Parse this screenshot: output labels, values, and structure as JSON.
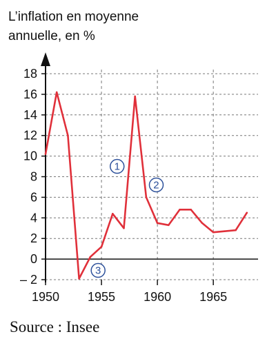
{
  "chart_data": {
    "type": "line",
    "title_lines": [
      "L’inflation en moyenne",
      "annuelle, en %"
    ],
    "source": "Source : Insee",
    "x": [
      1950,
      1951,
      1952,
      1953,
      1954,
      1955,
      1956,
      1957,
      1958,
      1959,
      1960,
      1961,
      1962,
      1963,
      1964,
      1965,
      1966,
      1967,
      1968
    ],
    "series": [
      {
        "values": [
          10.2,
          16.2,
          12.0,
          -1.9,
          0.2,
          1.2,
          4.4,
          3.0,
          15.8,
          6.0,
          3.5,
          3.3,
          4.8,
          4.8,
          3.5,
          2.6,
          2.7,
          2.8,
          4.5
        ]
      }
    ],
    "xlim": [
      1950,
      1969
    ],
    "ylim": [
      -2,
      18
    ],
    "xticks": [
      1950,
      1955,
      1960,
      1965
    ],
    "yticks": [
      -2,
      0,
      2,
      4,
      6,
      8,
      10,
      12,
      14,
      16,
      18
    ],
    "ytick_labels": [
      "– 2",
      "0",
      "2",
      "4",
      "6",
      "8",
      "10",
      "12",
      "14",
      "16",
      "18"
    ],
    "grid": true,
    "line_color": "#e0303a",
    "marker_color": "#2b4f9a",
    "annotations": [
      {
        "label": "1",
        "x": 1956.4,
        "y": 9.0
      },
      {
        "label": "2",
        "x": 1959.9,
        "y": 7.2
      },
      {
        "label": "3",
        "x": 1954.7,
        "y": -1.1
      }
    ]
  }
}
